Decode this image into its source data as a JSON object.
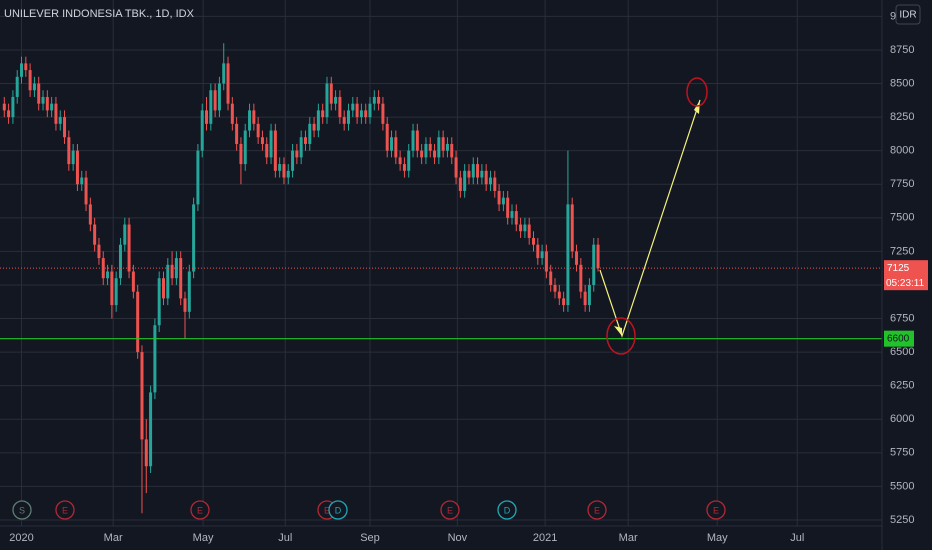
{
  "chart_data": {
    "type": "candlestick",
    "title": "UNILEVER INDONESIA TBK., 1D, IDX",
    "currency": "IDR",
    "up_color": "#26a69a",
    "down_color": "#ef5350",
    "grid": true,
    "ylim": [
      5205,
      9122
    ],
    "yticks": [
      5250,
      5500,
      5750,
      6000,
      6250,
      6500,
      6750,
      7000,
      7250,
      7500,
      7750,
      8000,
      8250,
      8500,
      8750,
      9000
    ],
    "xlim": [
      -1,
      204
    ],
    "xticks": [
      {
        "value": 4,
        "label": "2020"
      },
      {
        "value": 25.3,
        "label": "Mar"
      },
      {
        "value": 46.2,
        "label": "May"
      },
      {
        "value": 65.3,
        "label": "Jul"
      },
      {
        "value": 85,
        "label": "Sep"
      },
      {
        "value": 105.3,
        "label": "Nov"
      },
      {
        "value": 125.7,
        "label": "2021"
      },
      {
        "value": 145,
        "label": "Mar"
      },
      {
        "value": 165.7,
        "label": "May"
      },
      {
        "value": 184.3,
        "label": "Jul"
      }
    ],
    "last_price": 7125,
    "last_price_color": "#ef5350",
    "countdown": "05:23:11",
    "support": 6600,
    "support_color": "#22c32a",
    "events": [
      "S",
      "E",
      "E",
      "E",
      "D",
      "E",
      "D",
      "E",
      "E"
    ],
    "candles": [
      [
        8350,
        8400,
        8250,
        8300
      ],
      [
        8300,
        8350,
        8200,
        8250
      ],
      [
        8250,
        8450,
        8200,
        8400
      ],
      [
        8400,
        8600,
        8350,
        8550
      ],
      [
        8550,
        8700,
        8500,
        8650
      ],
      [
        8650,
        8700,
        8550,
        8600
      ],
      [
        8600,
        8650,
        8400,
        8450
      ],
      [
        8450,
        8550,
        8400,
        8500
      ],
      [
        8500,
        8550,
        8300,
        8350
      ],
      [
        8350,
        8450,
        8300,
        8400
      ],
      [
        8400,
        8450,
        8250,
        8300
      ],
      [
        8300,
        8400,
        8250,
        8350
      ],
      [
        8350,
        8400,
        8150,
        8200
      ],
      [
        8200,
        8300,
        8150,
        8250
      ],
      [
        8250,
        8300,
        8050,
        8100
      ],
      [
        8100,
        8150,
        7850,
        7900
      ],
      [
        7900,
        8050,
        7850,
        8000
      ],
      [
        8000,
        8050,
        7700,
        7750
      ],
      [
        7750,
        7850,
        7700,
        7800
      ],
      [
        7800,
        7850,
        7550,
        7600
      ],
      [
        7600,
        7650,
        7400,
        7450
      ],
      [
        7450,
        7500,
        7250,
        7300
      ],
      [
        7300,
        7350,
        7150,
        7200
      ],
      [
        7200,
        7250,
        7000,
        7050
      ],
      [
        7050,
        7150,
        7000,
        7100
      ],
      [
        7100,
        7150,
        6750,
        6850
      ],
      [
        6850,
        7100,
        6800,
        7050
      ],
      [
        7050,
        7350,
        7000,
        7300
      ],
      [
        7300,
        7500,
        7250,
        7450
      ],
      [
        7450,
        7500,
        7050,
        7100
      ],
      [
        7100,
        7150,
        6900,
        6950
      ],
      [
        6950,
        7000,
        6450,
        6500
      ],
      [
        6500,
        6550,
        5300,
        5850
      ],
      [
        5850,
        6000,
        5450,
        5650
      ],
      [
        5650,
        6250,
        5600,
        6200
      ],
      [
        6200,
        6750,
        6150,
        6700
      ],
      [
        6700,
        7100,
        6650,
        7050
      ],
      [
        7050,
        7100,
        6850,
        6900
      ],
      [
        6900,
        7200,
        6850,
        7150
      ],
      [
        7150,
        7250,
        7000,
        7050
      ],
      [
        7050,
        7250,
        7000,
        7200
      ],
      [
        7200,
        7250,
        6850,
        6900
      ],
      [
        6900,
        6950,
        6600,
        6800
      ],
      [
        6800,
        7150,
        6750,
        7100
      ],
      [
        7100,
        7650,
        7050,
        7600
      ],
      [
        7600,
        8050,
        7550,
        8000
      ],
      [
        8000,
        8350,
        7950,
        8300
      ],
      [
        8300,
        8400,
        8150,
        8200
      ],
      [
        8200,
        8500,
        8150,
        8450
      ],
      [
        8450,
        8500,
        8250,
        8300
      ],
      [
        8300,
        8550,
        8250,
        8500
      ],
      [
        8500,
        8800,
        8450,
        8650
      ],
      [
        8650,
        8700,
        8300,
        8350
      ],
      [
        8350,
        8400,
        8150,
        8200
      ],
      [
        8200,
        8250,
        8000,
        8050
      ],
      [
        8050,
        8100,
        7750,
        7900
      ],
      [
        7900,
        8200,
        7850,
        8150
      ],
      [
        8150,
        8350,
        8100,
        8300
      ],
      [
        8300,
        8350,
        8150,
        8200
      ],
      [
        8200,
        8250,
        8050,
        8100
      ],
      [
        8100,
        8150,
        8000,
        8050
      ],
      [
        8050,
        8100,
        7900,
        7950
      ],
      [
        7950,
        8200,
        7900,
        8150
      ],
      [
        8150,
        8200,
        7800,
        7850
      ],
      [
        7850,
        7950,
        7800,
        7900
      ],
      [
        7900,
        7950,
        7750,
        7800
      ],
      [
        7800,
        7900,
        7750,
        7850
      ],
      [
        7850,
        8050,
        7800,
        8000
      ],
      [
        8000,
        8050,
        7900,
        7950
      ],
      [
        7950,
        8150,
        7900,
        8100
      ],
      [
        8100,
        8150,
        8000,
        8050
      ],
      [
        8050,
        8250,
        8000,
        8200
      ],
      [
        8200,
        8250,
        8100,
        8150
      ],
      [
        8150,
        8350,
        8100,
        8300
      ],
      [
        8300,
        8350,
        8200,
        8250
      ],
      [
        8250,
        8550,
        8200,
        8500
      ],
      [
        8500,
        8550,
        8300,
        8350
      ],
      [
        8350,
        8450,
        8300,
        8400
      ],
      [
        8400,
        8450,
        8200,
        8250
      ],
      [
        8250,
        8300,
        8150,
        8200
      ],
      [
        8200,
        8350,
        8150,
        8300
      ],
      [
        8300,
        8400,
        8250,
        8350
      ],
      [
        8350,
        8400,
        8200,
        8250
      ],
      [
        8250,
        8350,
        8200,
        8300
      ],
      [
        8300,
        8350,
        8200,
        8250
      ],
      [
        8250,
        8400,
        8200,
        8350
      ],
      [
        8350,
        8450,
        8300,
        8400
      ],
      [
        8400,
        8450,
        8300,
        8350
      ],
      [
        8350,
        8400,
        8150,
        8200
      ],
      [
        8200,
        8250,
        7950,
        8000
      ],
      [
        8000,
        8150,
        7950,
        8100
      ],
      [
        8100,
        8150,
        7900,
        7950
      ],
      [
        7950,
        8000,
        7850,
        7900
      ],
      [
        7900,
        7950,
        7800,
        7850
      ],
      [
        7850,
        8050,
        7800,
        8000
      ],
      [
        8000,
        8200,
        7950,
        8150
      ],
      [
        8150,
        8200,
        7950,
        8000
      ],
      [
        8000,
        8050,
        7900,
        7950
      ],
      [
        7950,
        8100,
        7900,
        8050
      ],
      [
        8050,
        8100,
        7950,
        8000
      ],
      [
        8000,
        8050,
        7900,
        7950
      ],
      [
        7950,
        8150,
        7900,
        8100
      ],
      [
        8100,
        8150,
        7950,
        8000
      ],
      [
        8000,
        8100,
        7950,
        8050
      ],
      [
        8050,
        8100,
        7900,
        7950
      ],
      [
        7950,
        8000,
        7750,
        7800
      ],
      [
        7800,
        7850,
        7650,
        7700
      ],
      [
        7700,
        7900,
        7650,
        7850
      ],
      [
        7850,
        7900,
        7750,
        7800
      ],
      [
        7800,
        7950,
        7750,
        7900
      ],
      [
        7900,
        7950,
        7750,
        7800
      ],
      [
        7800,
        7900,
        7750,
        7850
      ],
      [
        7850,
        7900,
        7700,
        7750
      ],
      [
        7750,
        7850,
        7700,
        7800
      ],
      [
        7800,
        7850,
        7650,
        7700
      ],
      [
        7700,
        7750,
        7550,
        7600
      ],
      [
        7600,
        7700,
        7550,
        7650
      ],
      [
        7650,
        7700,
        7450,
        7500
      ],
      [
        7500,
        7600,
        7450,
        7550
      ],
      [
        7550,
        7600,
        7400,
        7450
      ],
      [
        7450,
        7500,
        7350,
        7400
      ],
      [
        7400,
        7500,
        7350,
        7450
      ],
      [
        7450,
        7500,
        7300,
        7350
      ],
      [
        7350,
        7400,
        7250,
        7300
      ],
      [
        7300,
        7350,
        7150,
        7200
      ],
      [
        7200,
        7300,
        7150,
        7250
      ],
      [
        7250,
        7300,
        7050,
        7100
      ],
      [
        7100,
        7150,
        6950,
        7000
      ],
      [
        7000,
        7050,
        6900,
        6950
      ],
      [
        6950,
        7000,
        6850,
        6900
      ],
      [
        6900,
        6950,
        6800,
        6850
      ],
      [
        6850,
        8000,
        6800,
        7600
      ],
      [
        7600,
        7650,
        7200,
        7250
      ],
      [
        7250,
        7300,
        7100,
        7150
      ],
      [
        7150,
        7200,
        6900,
        6950
      ],
      [
        6950,
        7000,
        6800,
        6850
      ],
      [
        6850,
        7050,
        6800,
        7000
      ],
      [
        7000,
        7350,
        6950,
        7300
      ],
      [
        7300,
        7350,
        7100,
        7125
      ]
    ]
  }
}
